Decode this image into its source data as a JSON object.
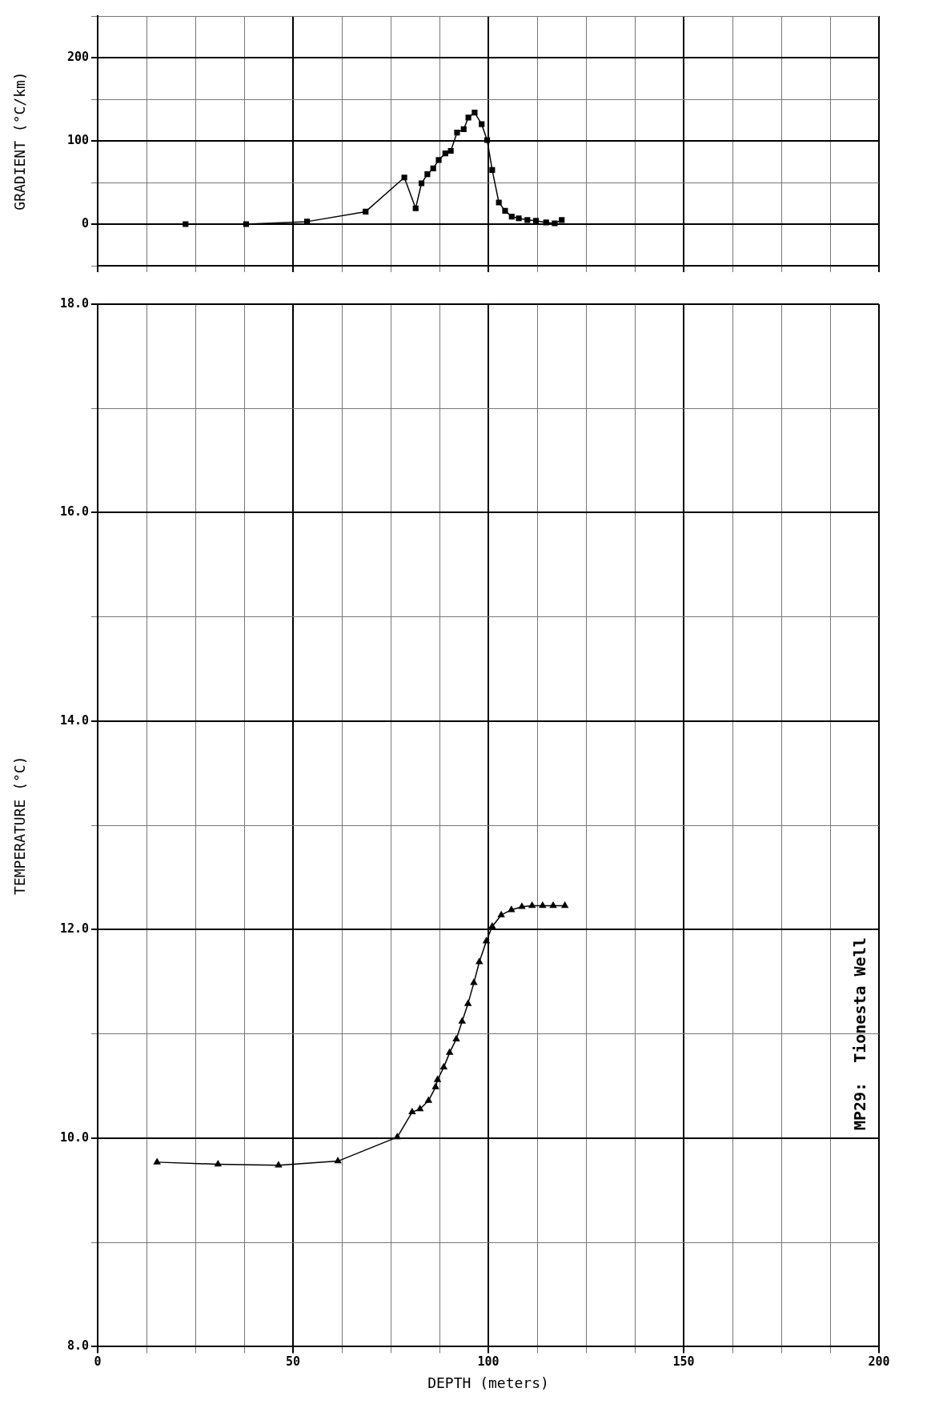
{
  "chart_data": [
    {
      "type": "line",
      "ylabel": "GRADIENT (°C/km)",
      "color": "#000000",
      "marker": "square",
      "line_style": "solid",
      "grid": true,
      "tick_labels": "y",
      "x": [
        22.5,
        38,
        53.6,
        68.6,
        78.5,
        81.4,
        82.9,
        84.4,
        85.9,
        87.3,
        89,
        90.4,
        92,
        93.7,
        94.9,
        96.5,
        98.3,
        99.7,
        101,
        102.7,
        104.3,
        106,
        107.8,
        110,
        112.2,
        114.8,
        117,
        118.8
      ],
      "values": [
        0,
        0,
        3,
        15,
        56,
        19,
        49,
        60,
        67,
        77,
        85,
        88,
        110,
        114,
        128,
        134,
        120,
        101,
        65,
        26,
        16,
        9,
        7,
        5,
        4,
        2,
        1,
        5
      ],
      "xlim": [
        0,
        200
      ],
      "xticks": [
        0,
        {
          "value": 12.5,
          "label": null
        },
        {
          "value": 25,
          "label": null
        },
        {
          "value": 37.5,
          "label": null
        },
        50,
        {
          "value": 62.5,
          "label": null
        },
        {
          "value": 75,
          "label": null
        },
        {
          "value": 87.5,
          "label": null
        },
        100,
        {
          "value": 112.5,
          "label": null
        },
        {
          "value": 125,
          "label": null
        },
        {
          "value": 137.5,
          "label": null
        },
        150,
        {
          "value": 162.5,
          "label": null
        },
        {
          "value": 175,
          "label": null
        },
        {
          "value": 187.5,
          "label": null
        },
        200
      ],
      "ylim": [
        -50,
        250
      ],
      "yticks": [
        {
          "value": -50,
          "label": null
        },
        0,
        {
          "value": 50,
          "label": null
        },
        100,
        {
          "value": 150,
          "label": null
        },
        200,
        {
          "value": 250,
          "label": null
        }
      ]
    },
    {
      "type": "line",
      "annotations": [
        "MP29:  Tionesta Well"
      ],
      "xlabel": "DEPTH (meters)",
      "ylabel": "TEMPERATURE (°C)",
      "color": "#000000",
      "marker": "triangle",
      "line_style": "solid",
      "grid": true,
      "x": [
        15.2,
        30.8,
        46.3,
        61.5,
        76.7,
        80.5,
        82.5,
        84.7,
        86.5,
        87,
        88.6,
        90.1,
        91.8,
        93.3,
        94.8,
        96.3,
        97.7,
        99.5,
        101,
        103.3,
        105.9,
        108.6,
        111.2,
        113.9,
        116.6,
        119.6
      ],
      "values": [
        9.77,
        9.75,
        9.74,
        9.78,
        10.01,
        10.25,
        10.28,
        10.36,
        10.49,
        10.56,
        10.68,
        10.82,
        10.95,
        11.12,
        11.29,
        11.49,
        11.69,
        11.89,
        12.03,
        12.14,
        12.19,
        12.22,
        12.23,
        12.23,
        12.23,
        12.23
      ],
      "xlim": [
        0,
        200
      ],
      "xticks": [
        0,
        {
          "value": 12.5,
          "label": null
        },
        {
          "value": 25,
          "label": null
        },
        {
          "value": 37.5,
          "label": null
        },
        50,
        {
          "value": 62.5,
          "label": null
        },
        {
          "value": 75,
          "label": null
        },
        {
          "value": 87.5,
          "label": null
        },
        100,
        {
          "value": 112.5,
          "label": null
        },
        {
          "value": 125,
          "label": null
        },
        {
          "value": 137.5,
          "label": null
        },
        150,
        {
          "value": 162.5,
          "label": null
        },
        {
          "value": 175,
          "label": null
        },
        {
          "value": 187.5,
          "label": null
        },
        200
      ],
      "ylim": [
        8,
        18
      ],
      "yticks": [
        {
          "value": 8,
          "label": "8.0"
        },
        {
          "value": 9,
          "label": null
        },
        {
          "value": 10,
          "label": "10.0"
        },
        {
          "value": 11,
          "label": null
        },
        {
          "value": 12,
          "label": "12.0"
        },
        {
          "value": 13,
          "label": null
        },
        {
          "value": 14,
          "label": "14.0"
        },
        {
          "value": 15,
          "label": null
        },
        {
          "value": 16,
          "label": "16.0"
        },
        {
          "value": 17,
          "label": null
        },
        {
          "value": 18,
          "label": "18.0"
        }
      ]
    }
  ]
}
